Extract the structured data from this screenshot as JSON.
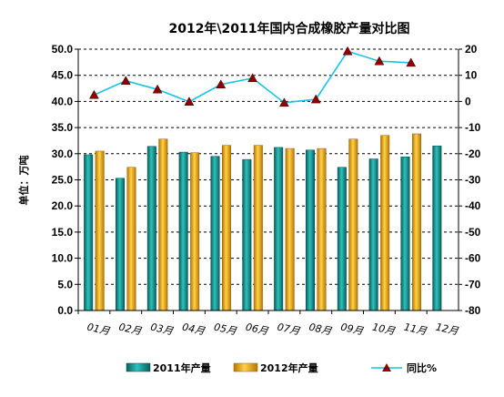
{
  "chart_data": {
    "type": "bar",
    "title": "2012年\\2011年国内合成橡胶产量对比图",
    "ylabel": "单位：万吨",
    "categories": [
      "01月",
      "02月",
      "03月",
      "04月",
      "05月",
      "06月",
      "07月",
      "08月",
      "09月",
      "10月",
      "11月",
      "12月"
    ],
    "series": [
      {
        "name": "2011年产量",
        "kind": "bar",
        "axis": "left",
        "color": "#1a9e9a",
        "values": [
          29.8,
          25.3,
          31.4,
          30.3,
          29.5,
          28.9,
          31.2,
          30.7,
          27.4,
          29.0,
          29.4,
          31.5
        ]
      },
      {
        "name": "2012年产量",
        "kind": "bar",
        "axis": "left",
        "color": "#f0a800",
        "values": [
          30.5,
          27.4,
          32.8,
          30.2,
          31.6,
          31.6,
          31.0,
          31.0,
          32.8,
          33.5,
          33.8,
          null
        ]
      },
      {
        "name": "同比%",
        "kind": "line",
        "axis": "right",
        "color": "#19c2e6",
        "marker_color": "#8b0000",
        "values": [
          2.5,
          7.9,
          4.6,
          -0.1,
          6.5,
          8.9,
          -0.5,
          0.8,
          19.2,
          15.4,
          14.8,
          null
        ]
      }
    ],
    "y_left": {
      "range": [
        0,
        50
      ],
      "step": 5,
      "ticks": [
        "0.0",
        "5.0",
        "10.0",
        "15.0",
        "20.0",
        "25.0",
        "30.0",
        "35.0",
        "40.0",
        "45.0",
        "50.0"
      ]
    },
    "y_right": {
      "range": [
        -80,
        20
      ],
      "step": 10,
      "ticks": [
        "-80",
        "-70",
        "-60",
        "-50",
        "-40",
        "-30",
        "-20",
        "-10",
        "0",
        "10",
        "20"
      ]
    },
    "grid": "horizontal dashed",
    "legend": "bottom"
  }
}
